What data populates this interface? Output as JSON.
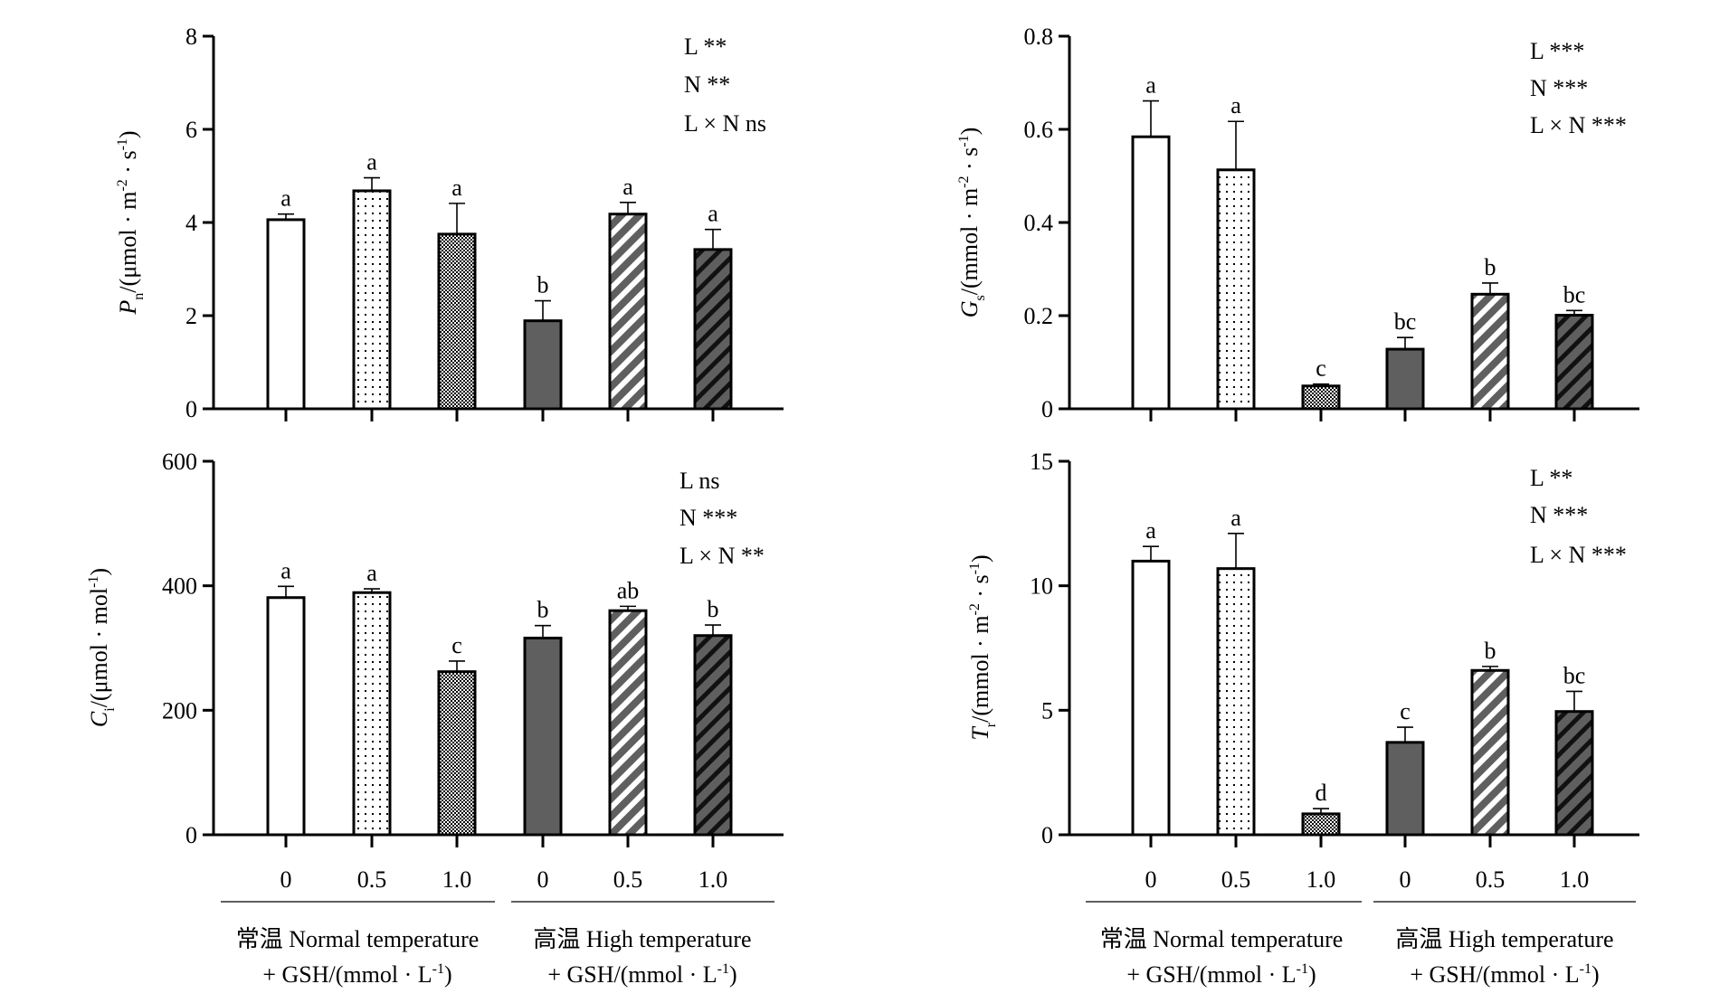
{
  "figure": {
    "x_categories": [
      "0",
      "0.5",
      "1.0",
      "0",
      "0.5",
      "1.0"
    ],
    "groups": [
      {
        "line1": "常温 Normal temperature",
        "line2": "+ GSH/(mmol · L",
        "sup": "-1",
        "close": ")"
      },
      {
        "line1": "高温 High temperature",
        "line2": "+ GSH/(mmol · L",
        "sup": "-1",
        "close": ")"
      }
    ],
    "treatments": [
      {
        "temperature": "Normal",
        "gsh": "0",
        "pattern": "white"
      },
      {
        "temperature": "Normal",
        "gsh": "0.5",
        "pattern": "dots"
      },
      {
        "temperature": "Normal",
        "gsh": "1.0",
        "pattern": "checker"
      },
      {
        "temperature": "High",
        "gsh": "0",
        "pattern": "solid-grey"
      },
      {
        "temperature": "High",
        "gsh": "0.5",
        "pattern": "grey-white-stripes"
      },
      {
        "temperature": "High",
        "gsh": "1.0",
        "pattern": "grey-black-stripes"
      }
    ],
    "colors": {
      "axis": "#000000",
      "bar_grey": "#5f5f5f",
      "bar_white": "#ffffff"
    }
  },
  "chart_data": [
    {
      "id": "pn",
      "type": "bar",
      "title": "",
      "ylabel": {
        "symbol": "P",
        "sub": "n",
        "unit": "/(μmol · m",
        "sup1": "-2",
        "mid": " · s",
        "sup2": "-1",
        "end": ")"
      },
      "xlabel": "",
      "categories": [
        "0",
        "0.5",
        "1.0",
        "0",
        "0.5",
        "1.0"
      ],
      "ylim": [
        0,
        8
      ],
      "yticks": [
        "0",
        "2",
        "4",
        "6",
        "8"
      ],
      "ytick_values": [
        0,
        2,
        4,
        6,
        8
      ],
      "values": [
        4.06,
        4.68,
        3.75,
        1.89,
        4.18,
        3.42
      ],
      "errors": [
        0.12,
        0.28,
        0.66,
        0.43,
        0.25,
        0.43
      ],
      "letters": [
        "a",
        "a",
        "a",
        "b",
        "a",
        "a"
      ],
      "stats": [
        "L **",
        "N  **",
        "L × N ns"
      ],
      "grid": false
    },
    {
      "id": "gs",
      "type": "bar",
      "title": "",
      "ylabel": {
        "symbol": "G",
        "sub": "s",
        "unit": "/(mmol · m",
        "sup1": "-2",
        "mid": " · s",
        "sup2": "-1",
        "end": ")"
      },
      "xlabel": "",
      "categories": [
        "0",
        "0.5",
        "1.0",
        "0",
        "0.5",
        "1.0"
      ],
      "ylim": [
        0,
        0.8
      ],
      "yticks": [
        "0",
        "0.2",
        "0.4",
        "0.6",
        "0.8"
      ],
      "ytick_values": [
        0,
        0.2,
        0.4,
        0.6,
        0.8
      ],
      "values": [
        0.584,
        0.513,
        0.049,
        0.128,
        0.246,
        0.201
      ],
      "errors": [
        0.077,
        0.104,
        0.004,
        0.025,
        0.024,
        0.01
      ],
      "letters": [
        "a",
        "a",
        "c",
        "bc",
        "b",
        "bc"
      ],
      "stats": [
        "L ***",
        "N  ***",
        "L × N ***"
      ],
      "grid": false
    },
    {
      "id": "ci",
      "type": "bar",
      "title": "",
      "ylabel": {
        "symbol": "C",
        "sub": "i",
        "unit": "/(μmol · mol",
        "sup1": "-1",
        "mid": "",
        "sup2": "",
        "end": ")"
      },
      "xlabel": "",
      "categories": [
        "0",
        "0.5",
        "1.0",
        "0",
        "0.5",
        "1.0"
      ],
      "ylim": [
        0,
        600
      ],
      "yticks": [
        "0",
        "200",
        "400",
        "600"
      ],
      "ytick_values": [
        0,
        200,
        400,
        600
      ],
      "values": [
        381,
        389,
        262,
        316,
        360,
        320
      ],
      "errors": [
        18,
        6,
        17,
        20,
        7,
        17
      ],
      "letters": [
        "a",
        "a",
        "c",
        "b",
        "ab",
        "b"
      ],
      "stats": [
        "L ns",
        "N  ***",
        "L × N **"
      ],
      "grid": false
    },
    {
      "id": "tr",
      "type": "bar",
      "title": "",
      "ylabel": {
        "symbol": "T",
        "sub": "r",
        "unit": "/(mmol · m",
        "sup1": "-2",
        "mid": " · s",
        "sup2": "-1",
        "end": ")"
      },
      "xlabel": "",
      "categories": [
        "0",
        "0.5",
        "1.0",
        "0",
        "0.5",
        "1.0"
      ],
      "ylim": [
        0,
        15
      ],
      "yticks": [
        "0",
        "5",
        "10",
        "15"
      ],
      "ytick_values": [
        0,
        5,
        10,
        15
      ],
      "values": [
        10.99,
        10.69,
        0.84,
        3.71,
        6.6,
        4.95
      ],
      "errors": [
        0.59,
        1.41,
        0.21,
        0.61,
        0.16,
        0.81
      ],
      "letters": [
        "a",
        "a",
        "d",
        "c",
        "b",
        "bc"
      ],
      "stats": [
        "L **",
        "N  ***",
        "L × N ***"
      ],
      "grid": false
    }
  ]
}
